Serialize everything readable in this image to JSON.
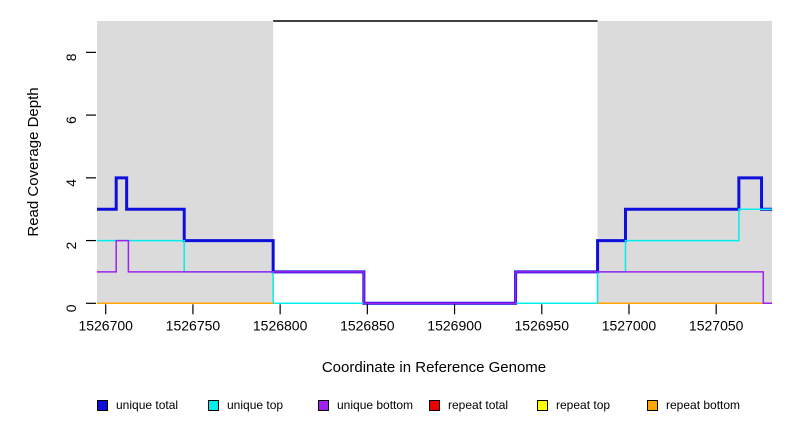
{
  "y_axis": {
    "label": "Read Coverage Depth",
    "ticks": [
      0,
      2,
      4,
      6,
      8
    ]
  },
  "x_axis": {
    "label": "Coordinate in Reference Genome",
    "ticks": [
      1526700,
      1526750,
      1526800,
      1526850,
      1526900,
      1526950,
      1527000,
      1527050
    ]
  },
  "chart_data": {
    "type": "line",
    "style": "step",
    "xlim": [
      1526695,
      1527082
    ],
    "ylim": [
      0,
      9.4
    ],
    "grid": false,
    "background_shade_color": "#DBDBDB",
    "shaded_repeat_regions": [
      {
        "x1": 1526695,
        "x2": 1526796
      },
      {
        "x1": 1526982,
        "x2": 1527082
      }
    ],
    "region_marker": {
      "y": 9,
      "x1": 1526796,
      "x2": 1526982,
      "color": "#000000"
    },
    "series": [
      {
        "name": "unique total",
        "color": "#0F0FDC",
        "width": 3,
        "z": 1,
        "steps": [
          [
            1526695,
            3
          ],
          [
            1526706,
            4
          ],
          [
            1526712,
            3
          ],
          [
            1526745,
            2
          ],
          [
            1526796,
            1
          ],
          [
            1526848,
            0
          ],
          [
            1526935,
            1
          ],
          [
            1526982,
            2
          ],
          [
            1526998,
            3
          ],
          [
            1527063,
            4
          ],
          [
            1527076,
            3
          ]
        ]
      },
      {
        "name": "unique top",
        "color": "#00EEEE",
        "width": 1.5,
        "z": 2,
        "steps": [
          [
            1526695,
            2
          ],
          [
            1526745,
            1
          ],
          [
            1526796,
            0
          ],
          [
            1526982,
            1
          ],
          [
            1526998,
            2
          ],
          [
            1527063,
            3
          ]
        ]
      },
      {
        "name": "unique bottom",
        "color": "#A020F0",
        "width": 1.5,
        "z": 6,
        "steps": [
          [
            1526695,
            1
          ],
          [
            1526706,
            2
          ],
          [
            1526713,
            1
          ],
          [
            1526848,
            0
          ],
          [
            1526935,
            1
          ],
          [
            1527077,
            0
          ]
        ]
      },
      {
        "name": "repeat total",
        "color": "#EE0000",
        "width": 1.5,
        "z": 3,
        "segments": [
          [
            1526695,
            1526796,
            0
          ],
          [
            1526982,
            1527082,
            0
          ]
        ]
      },
      {
        "name": "repeat top",
        "color": "#FFFF00",
        "width": 1.5,
        "z": 4,
        "segments": [
          [
            1526695,
            1526796,
            0
          ],
          [
            1526982,
            1527082,
            0
          ]
        ]
      },
      {
        "name": "repeat bottom",
        "color": "#FFA500",
        "width": 1.5,
        "z": 5,
        "segments": [
          [
            1526695,
            1526796,
            0
          ],
          [
            1526982,
            1527082,
            0
          ]
        ]
      }
    ]
  },
  "legend": {
    "items": [
      {
        "label": "unique total",
        "color": "#0F0FDC"
      },
      {
        "label": "unique top",
        "color": "#00EEEE"
      },
      {
        "label": "unique bottom",
        "color": "#A020F0"
      },
      {
        "label": "repeat total",
        "color": "#EE0000"
      },
      {
        "label": "repeat top",
        "color": "#FFFF00"
      },
      {
        "label": "repeat bottom",
        "color": "#FFA500"
      }
    ]
  }
}
